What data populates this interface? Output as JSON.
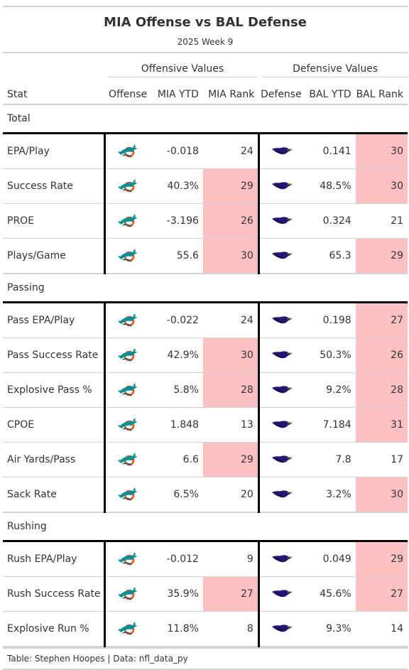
{
  "title": "MIA Offense vs BAL Defense",
  "subtitle": "2025 Week 9",
  "spanners": {
    "offense": "Offensive Values",
    "defense": "Defensive Values"
  },
  "columns": {
    "stat": "Stat",
    "offense": "Offense",
    "mia_ytd": "MIA YTD",
    "mia_rank": "MIA Rank",
    "defense": "Defense",
    "bal_ytd": "BAL YTD",
    "bal_rank": "BAL Rank"
  },
  "logos": {
    "offense": "dolphins-logo-icon",
    "defense": "ravens-logo-icon"
  },
  "colors": {
    "highlight": "#ffc0c4",
    "divider": "#000000",
    "rule": "#d3d3d3",
    "dolphins_aqua": "#008e97",
    "dolphins_orange": "#fc4c02",
    "ravens_purple": "#241773"
  },
  "groups": [
    {
      "name": "Total",
      "rows": [
        {
          "stat": "EPA/Play",
          "mia_ytd": "-0.018",
          "mia_rank": "24",
          "mia_bad": false,
          "bal_ytd": "0.141",
          "bal_rank": "30",
          "bal_bad": true
        },
        {
          "stat": "Success Rate",
          "mia_ytd": "40.3%",
          "mia_rank": "29",
          "mia_bad": true,
          "bal_ytd": "48.5%",
          "bal_rank": "30",
          "bal_bad": true
        },
        {
          "stat": "PROE",
          "mia_ytd": "-3.196",
          "mia_rank": "26",
          "mia_bad": true,
          "bal_ytd": "0.324",
          "bal_rank": "21",
          "bal_bad": false
        },
        {
          "stat": "Plays/Game",
          "mia_ytd": "55.6",
          "mia_rank": "30",
          "mia_bad": true,
          "bal_ytd": "65.3",
          "bal_rank": "29",
          "bal_bad": true
        }
      ]
    },
    {
      "name": "Passing",
      "rows": [
        {
          "stat": "Pass EPA/Play",
          "mia_ytd": "-0.022",
          "mia_rank": "24",
          "mia_bad": false,
          "bal_ytd": "0.198",
          "bal_rank": "27",
          "bal_bad": true
        },
        {
          "stat": "Pass Success Rate",
          "mia_ytd": "42.9%",
          "mia_rank": "30",
          "mia_bad": true,
          "bal_ytd": "50.3%",
          "bal_rank": "26",
          "bal_bad": true
        },
        {
          "stat": "Explosive Pass %",
          "mia_ytd": "5.8%",
          "mia_rank": "28",
          "mia_bad": true,
          "bal_ytd": "9.2%",
          "bal_rank": "28",
          "bal_bad": true
        },
        {
          "stat": "CPOE",
          "mia_ytd": "1.848",
          "mia_rank": "13",
          "mia_bad": false,
          "bal_ytd": "7.184",
          "bal_rank": "31",
          "bal_bad": true
        },
        {
          "stat": "Air Yards/Pass",
          "mia_ytd": "6.6",
          "mia_rank": "29",
          "mia_bad": true,
          "bal_ytd": "7.8",
          "bal_rank": "17",
          "bal_bad": false
        },
        {
          "stat": "Sack Rate",
          "mia_ytd": "6.5%",
          "mia_rank": "20",
          "mia_bad": false,
          "bal_ytd": "3.2%",
          "bal_rank": "30",
          "bal_bad": true
        }
      ]
    },
    {
      "name": "Rushing",
      "rows": [
        {
          "stat": "Rush EPA/Play",
          "mia_ytd": "-0.012",
          "mia_rank": "9",
          "mia_bad": false,
          "bal_ytd": "0.049",
          "bal_rank": "29",
          "bal_bad": true
        },
        {
          "stat": "Rush Success Rate",
          "mia_ytd": "35.9%",
          "mia_rank": "27",
          "mia_bad": true,
          "bal_ytd": "45.6%",
          "bal_rank": "27",
          "bal_bad": true
        },
        {
          "stat": "Explosive Run %",
          "mia_ytd": "11.8%",
          "mia_rank": "8",
          "mia_bad": false,
          "bal_ytd": "9.3%",
          "bal_rank": "14",
          "bal_bad": false
        }
      ]
    }
  ],
  "footer": "Table: Stephen Hoopes | Data: nfl_data_py"
}
